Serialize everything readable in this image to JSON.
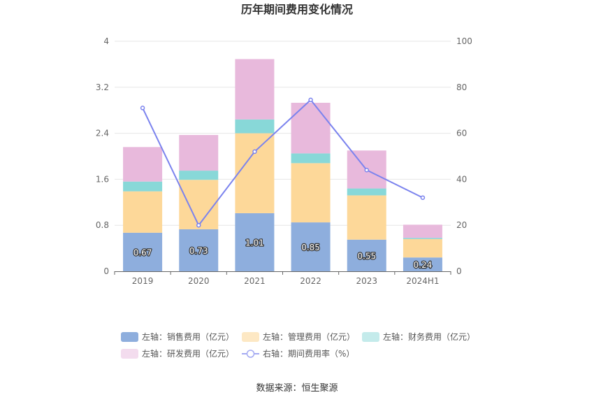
{
  "chart_data": {
    "type": "bar",
    "stacked": true,
    "title": "历年期间费用变化情况",
    "categories": [
      "2019",
      "2020",
      "2021",
      "2022",
      "2023",
      "2024H1"
    ],
    "y_left": {
      "ticks": [
        "0",
        "0.8",
        "1.6",
        "2.4",
        "3.2",
        "4"
      ],
      "min": 0,
      "max": 4
    },
    "y_right": {
      "ticks": [
        "0",
        "20",
        "40",
        "60",
        "80",
        "100"
      ],
      "min": 0,
      "max": 100
    },
    "series": [
      {
        "name": "左轴：销售费用（亿元）",
        "axis": "left",
        "type": "bar",
        "color": "#8eaedd",
        "values": [
          0.67,
          0.73,
          1.01,
          0.85,
          0.55,
          0.24
        ],
        "labels": [
          "0.67",
          "0.73",
          "1.01",
          "0.85",
          "0.55",
          "0.24"
        ]
      },
      {
        "name": "左轴：管理费用（亿元）",
        "axis": "left",
        "type": "bar",
        "color": "#fdd899",
        "values": [
          0.72,
          0.86,
          1.39,
          1.03,
          0.77,
          0.32
        ]
      },
      {
        "name": "左轴：财务费用（亿元）",
        "axis": "left",
        "type": "bar",
        "color": "#88d8d8",
        "values": [
          0.17,
          0.16,
          0.24,
          0.17,
          0.12,
          0.02
        ]
      },
      {
        "name": "左轴：研发费用（亿元）",
        "axis": "left",
        "type": "bar",
        "color": "#e8b9dc",
        "values": [
          0.6,
          0.62,
          1.05,
          0.88,
          0.66,
          0.23
        ]
      },
      {
        "name": "右轴：期间费用率（%）",
        "axis": "right",
        "type": "line",
        "color": "#7b83ee",
        "values": [
          71,
          20,
          52,
          74.5,
          44,
          32
        ]
      }
    ],
    "legend": {
      "position": "bottom",
      "swatch_colors": [
        "#8eaedd",
        "#fde8c4",
        "#c4ebeb",
        "#f3dcee",
        "#a4aaf2"
      ]
    },
    "grid": true
  },
  "footer": {
    "source": "数据来源：恒生聚源"
  }
}
